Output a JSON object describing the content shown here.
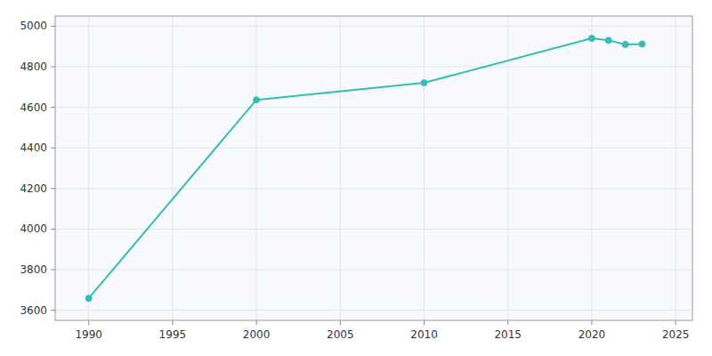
{
  "chart_data": {
    "type": "line",
    "x": [
      1990,
      2000,
      2010,
      2020,
      2021,
      2022,
      2023
    ],
    "values": [
      3659,
      4637,
      4721,
      4940,
      4930,
      4910,
      4912
    ],
    "color": "#35bdb5",
    "marker": "circle",
    "xlim": [
      1988,
      2026
    ],
    "ylim": [
      3550,
      5050
    ],
    "xticks": [
      1990,
      1995,
      2000,
      2005,
      2010,
      2015,
      2020,
      2025
    ],
    "yticks": [
      3600,
      3800,
      4000,
      4200,
      4400,
      4600,
      4800,
      5000
    ],
    "grid": true
  }
}
